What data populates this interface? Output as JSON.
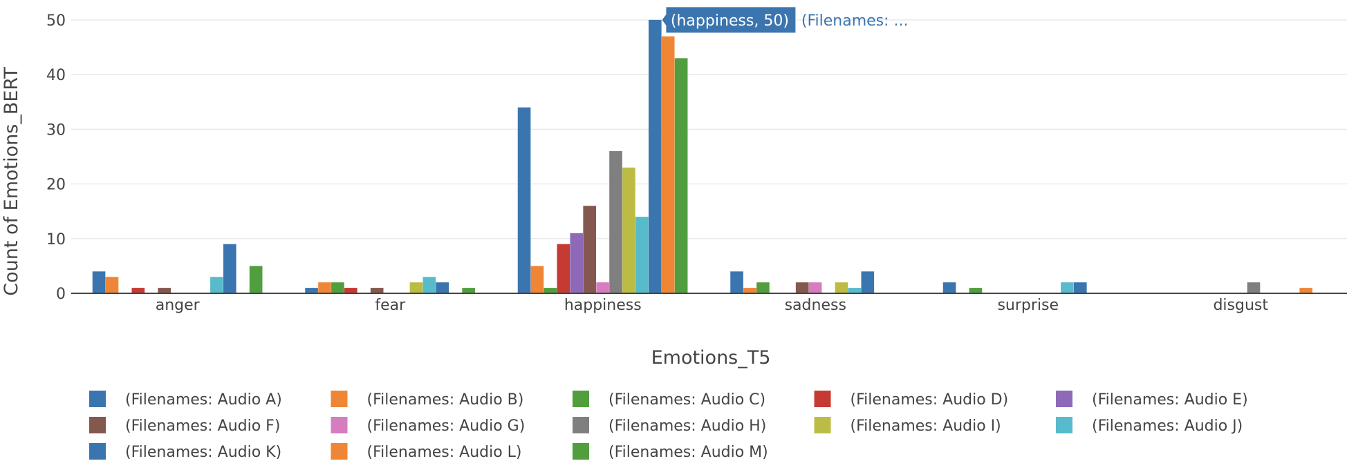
{
  "chart_data": {
    "type": "bar",
    "xlabel": "Emotions_T5",
    "ylabel": "Count of Emotions_BERT",
    "ylim": [
      0,
      51.5
    ],
    "yticks": [
      0,
      10,
      20,
      30,
      40,
      50
    ],
    "categories": [
      "anger",
      "fear",
      "happiness",
      "sadness",
      "surprise",
      "disgust"
    ],
    "legend_position": "bottom",
    "grid": true,
    "series": [
      {
        "name": "(Filenames: Audio A)",
        "color": "#3b75af",
        "values": [
          4,
          1,
          34,
          4,
          2,
          0
        ]
      },
      {
        "name": "(Filenames: Audio B)",
        "color": "#ef8636",
        "values": [
          3,
          2,
          5,
          1,
          0,
          0
        ]
      },
      {
        "name": "(Filenames: Audio C)",
        "color": "#519e3e",
        "values": [
          0,
          2,
          1,
          2,
          1,
          0
        ]
      },
      {
        "name": "(Filenames: Audio D)",
        "color": "#c53a32",
        "values": [
          1,
          1,
          9,
          0,
          0,
          0
        ]
      },
      {
        "name": "(Filenames: Audio E)",
        "color": "#8d69b8",
        "values": [
          0,
          0,
          11,
          0,
          0,
          0
        ]
      },
      {
        "name": "(Filenames: Audio F)",
        "color": "#84584e",
        "values": [
          1,
          1,
          16,
          2,
          0,
          0
        ]
      },
      {
        "name": "(Filenames: Audio G)",
        "color": "#d57dbe",
        "values": [
          0,
          0,
          2,
          2,
          0,
          0
        ]
      },
      {
        "name": "(Filenames: Audio H)",
        "color": "#7f7f7f",
        "values": [
          0,
          0,
          26,
          0,
          0,
          2
        ]
      },
      {
        "name": "(Filenames: Audio I)",
        "color": "#bcbc45",
        "values": [
          0,
          2,
          23,
          2,
          0,
          0
        ]
      },
      {
        "name": "(Filenames: Audio J)",
        "color": "#58bbcc",
        "values": [
          3,
          3,
          14,
          1,
          2,
          0
        ]
      },
      {
        "name": "(Filenames: Audio K)",
        "color": "#3b75af",
        "values": [
          9,
          2,
          50,
          4,
          2,
          0
        ]
      },
      {
        "name": "(Filenames: Audio L)",
        "color": "#ef8636",
        "values": [
          0,
          0,
          47,
          0,
          0,
          1
        ]
      },
      {
        "name": "(Filenames: Audio M)",
        "color": "#519e3e",
        "values": [
          5,
          1,
          43,
          0,
          0,
          0
        ]
      }
    ],
    "tooltip": {
      "label": "(happiness, 50)",
      "series_label": "(Filenames: ...",
      "category": "happiness",
      "series_index": 10,
      "value": 50,
      "color": "#3b75af"
    }
  }
}
